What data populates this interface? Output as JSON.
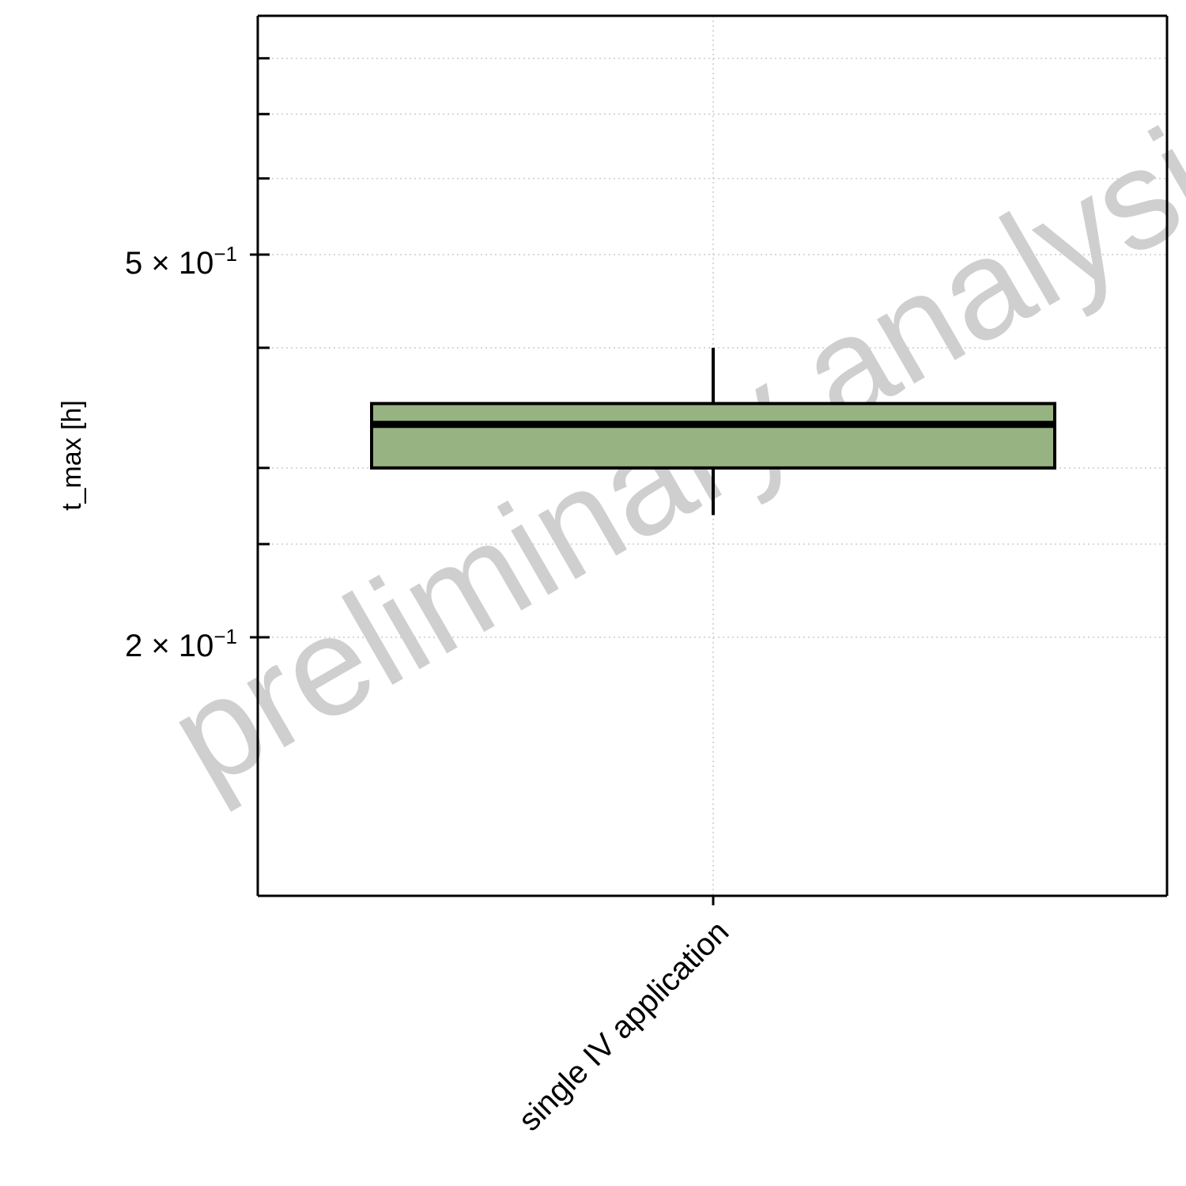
{
  "chart_data": {
    "type": "box",
    "categories": [
      "single IV application"
    ],
    "ylabel": "t_max [h]",
    "xlabel": "",
    "yscale": "log",
    "ylim": [
      0.13,
      0.9
    ],
    "yticks": [
      {
        "value": 0.5,
        "mantissa": "5",
        "exponent": "−1"
      },
      {
        "value": 0.2,
        "mantissa": "2",
        "exponent": "−1"
      }
    ],
    "minor_yticks": [
      0.25,
      0.3,
      0.4,
      0.6,
      0.7,
      0.8
    ],
    "grid": true,
    "boxes": [
      {
        "category": "single IV application",
        "whisker_low": 0.268,
        "q1": 0.3,
        "median": 0.333,
        "q3": 0.35,
        "whisker_high": 0.4,
        "color": "#98b382"
      }
    ],
    "watermark": "preliminary analysis"
  },
  "colors": {
    "box_fill": "#98b382",
    "grid": "#cccccc",
    "watermark": "#cfcfcf"
  }
}
